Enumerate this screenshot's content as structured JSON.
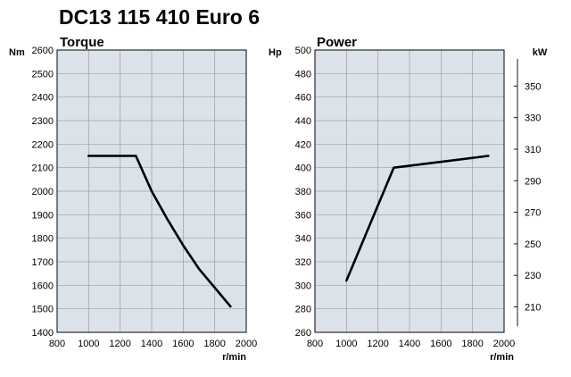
{
  "title": "DC13 115 410 Euro 6",
  "chart_data": [
    {
      "type": "line",
      "title": "Torque",
      "ylabel": "Nm",
      "xlabel": "r/min",
      "xlim": [
        800,
        2000
      ],
      "ylim": [
        1400,
        2600
      ],
      "xticks": [
        800,
        1000,
        1200,
        1400,
        1600,
        1800,
        2000
      ],
      "yticks": [
        1400,
        1500,
        1600,
        1700,
        1800,
        1900,
        2000,
        2100,
        2200,
        2300,
        2400,
        2500,
        2600
      ],
      "grid": true,
      "series": [
        {
          "x": [
            1000,
            1300,
            1360,
            1400,
            1500,
            1600,
            1700,
            1800,
            1900
          ],
          "y": [
            2150,
            2150,
            2060,
            2000,
            1880,
            1770,
            1670,
            1590,
            1510
          ]
        }
      ]
    },
    {
      "type": "line",
      "title": "Power",
      "ylabel": "Hp",
      "y2label": "kW",
      "xlabel": "r/min",
      "xlim": [
        800,
        2000
      ],
      "ylim": [
        260,
        500
      ],
      "xticks": [
        800,
        1000,
        1200,
        1400,
        1600,
        1800,
        2000
      ],
      "yticks": [
        260,
        280,
        300,
        320,
        340,
        360,
        380,
        400,
        420,
        440,
        460,
        480,
        500
      ],
      "y2ticks": [
        210,
        230,
        250,
        270,
        290,
        310,
        330,
        350
      ],
      "grid": true,
      "series": [
        {
          "x": [
            1000,
            1300,
            1900
          ],
          "y": [
            304,
            400,
            410
          ]
        }
      ]
    }
  ]
}
